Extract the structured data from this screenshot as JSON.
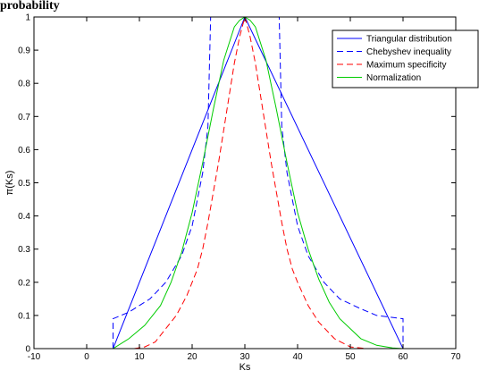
{
  "caption": "probability",
  "chart_data": {
    "type": "line",
    "xlabel": "Ks",
    "ylabel": "π(Ks)",
    "xlim": [
      -10,
      70
    ],
    "ylim": [
      0,
      1
    ],
    "xticks": [
      "-10",
      "0",
      "10",
      "20",
      "30",
      "40",
      "50",
      "60",
      "70"
    ],
    "yticks": [
      "0",
      "0.1",
      "0.2",
      "0.3",
      "0.4",
      "0.5",
      "0.6",
      "0.7",
      "0.8",
      "0.9",
      "1"
    ],
    "grid": false,
    "legend_position": "top-right",
    "series": [
      {
        "name": "Triangular distribution",
        "color": "#0000ff",
        "dash": "solid",
        "x": [
          5,
          30,
          60
        ],
        "y": [
          0,
          1,
          0
        ]
      },
      {
        "name": "Chebyshev inequality",
        "color": "#0000ff",
        "dash": "dashed",
        "x": [
          5,
          5,
          8,
          12,
          15,
          18,
          20,
          22,
          23,
          23.5,
          24.5,
          35.5,
          36.5,
          37,
          38,
          40,
          42,
          45,
          48,
          52,
          55,
          60,
          60
        ],
        "y": [
          0,
          0.09,
          0.11,
          0.15,
          0.2,
          0.28,
          0.37,
          0.53,
          0.67,
          1,
          1,
          1,
          1,
          0.67,
          0.53,
          0.37,
          0.28,
          0.2,
          0.15,
          0.12,
          0.1,
          0.09,
          0
        ]
      },
      {
        "name": "Maximum specificity",
        "color": "#ff0000",
        "dash": "dashed",
        "x": [
          9,
          11,
          13,
          15,
          17,
          19,
          21,
          22,
          23,
          24,
          25,
          26,
          27,
          28,
          29,
          30,
          31,
          32,
          33,
          34,
          35,
          36,
          37,
          38,
          39,
          40,
          42,
          44,
          47,
          50,
          53
        ],
        "y": [
          0,
          0.005,
          0.02,
          0.06,
          0.1,
          0.16,
          0.24,
          0.3,
          0.38,
          0.47,
          0.56,
          0.66,
          0.76,
          0.86,
          0.94,
          1,
          0.94,
          0.86,
          0.76,
          0.66,
          0.56,
          0.47,
          0.38,
          0.3,
          0.24,
          0.2,
          0.13,
          0.08,
          0.03,
          0.005,
          0
        ]
      },
      {
        "name": "Normalization",
        "color": "#00cc00",
        "dash": "solid",
        "x": [
          5,
          8,
          11,
          14,
          16,
          18,
          20,
          22,
          24,
          26,
          28,
          29,
          30,
          31,
          32,
          34,
          36,
          38,
          40,
          42,
          44,
          46,
          48,
          50,
          52,
          55,
          58,
          60
        ],
        "y": [
          0,
          0.03,
          0.07,
          0.13,
          0.2,
          0.29,
          0.41,
          0.56,
          0.72,
          0.87,
          0.97,
          0.99,
          1,
          0.99,
          0.97,
          0.87,
          0.72,
          0.56,
          0.41,
          0.3,
          0.21,
          0.14,
          0.09,
          0.06,
          0.03,
          0.01,
          0.002,
          0
        ]
      }
    ]
  }
}
